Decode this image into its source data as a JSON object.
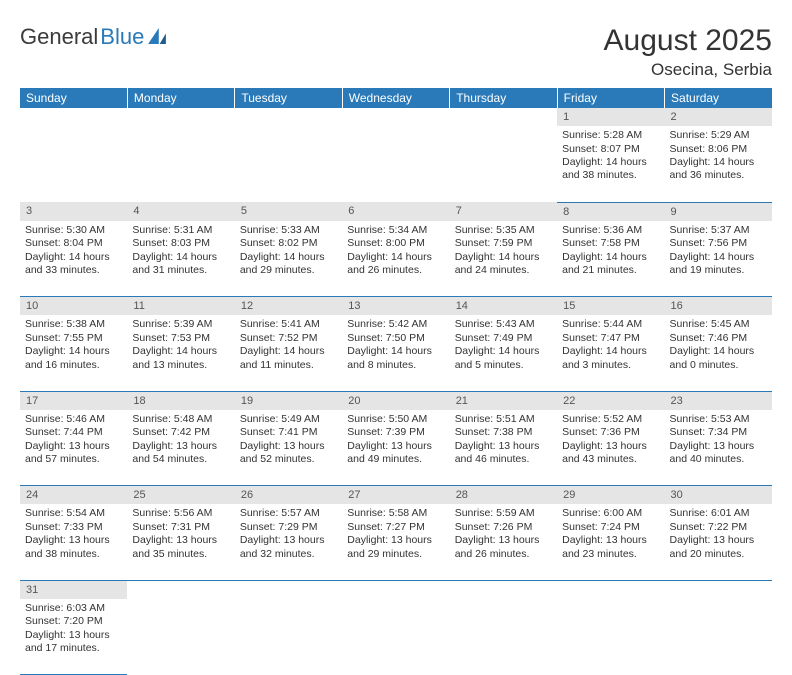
{
  "logo": {
    "word1": "General",
    "word2": "Blue"
  },
  "title": "August 2025",
  "location": "Osecina, Serbia",
  "colors": {
    "header_bg": "#2a7ab9",
    "header_text": "#ffffff",
    "daynum_bg": "#e5e5e5",
    "border": "#2a7ab9",
    "logo_dark": "#3b3b3b",
    "logo_blue": "#2a7ab9"
  },
  "day_headers": [
    "Sunday",
    "Monday",
    "Tuesday",
    "Wednesday",
    "Thursday",
    "Friday",
    "Saturday"
  ],
  "weeks": [
    {
      "nums": [
        "",
        "",
        "",
        "",
        "",
        "1",
        "2"
      ],
      "cells": [
        null,
        null,
        null,
        null,
        null,
        {
          "sr": "Sunrise: 5:28 AM",
          "ss": "Sunset: 8:07 PM",
          "dl": "Daylight: 14 hours and 38 minutes."
        },
        {
          "sr": "Sunrise: 5:29 AM",
          "ss": "Sunset: 8:06 PM",
          "dl": "Daylight: 14 hours and 36 minutes."
        }
      ]
    },
    {
      "nums": [
        "3",
        "4",
        "5",
        "6",
        "7",
        "8",
        "9"
      ],
      "cells": [
        {
          "sr": "Sunrise: 5:30 AM",
          "ss": "Sunset: 8:04 PM",
          "dl": "Daylight: 14 hours and 33 minutes."
        },
        {
          "sr": "Sunrise: 5:31 AM",
          "ss": "Sunset: 8:03 PM",
          "dl": "Daylight: 14 hours and 31 minutes."
        },
        {
          "sr": "Sunrise: 5:33 AM",
          "ss": "Sunset: 8:02 PM",
          "dl": "Daylight: 14 hours and 29 minutes."
        },
        {
          "sr": "Sunrise: 5:34 AM",
          "ss": "Sunset: 8:00 PM",
          "dl": "Daylight: 14 hours and 26 minutes."
        },
        {
          "sr": "Sunrise: 5:35 AM",
          "ss": "Sunset: 7:59 PM",
          "dl": "Daylight: 14 hours and 24 minutes."
        },
        {
          "sr": "Sunrise: 5:36 AM",
          "ss": "Sunset: 7:58 PM",
          "dl": "Daylight: 14 hours and 21 minutes."
        },
        {
          "sr": "Sunrise: 5:37 AM",
          "ss": "Sunset: 7:56 PM",
          "dl": "Daylight: 14 hours and 19 minutes."
        }
      ]
    },
    {
      "nums": [
        "10",
        "11",
        "12",
        "13",
        "14",
        "15",
        "16"
      ],
      "cells": [
        {
          "sr": "Sunrise: 5:38 AM",
          "ss": "Sunset: 7:55 PM",
          "dl": "Daylight: 14 hours and 16 minutes."
        },
        {
          "sr": "Sunrise: 5:39 AM",
          "ss": "Sunset: 7:53 PM",
          "dl": "Daylight: 14 hours and 13 minutes."
        },
        {
          "sr": "Sunrise: 5:41 AM",
          "ss": "Sunset: 7:52 PM",
          "dl": "Daylight: 14 hours and 11 minutes."
        },
        {
          "sr": "Sunrise: 5:42 AM",
          "ss": "Sunset: 7:50 PM",
          "dl": "Daylight: 14 hours and 8 minutes."
        },
        {
          "sr": "Sunrise: 5:43 AM",
          "ss": "Sunset: 7:49 PM",
          "dl": "Daylight: 14 hours and 5 minutes."
        },
        {
          "sr": "Sunrise: 5:44 AM",
          "ss": "Sunset: 7:47 PM",
          "dl": "Daylight: 14 hours and 3 minutes."
        },
        {
          "sr": "Sunrise: 5:45 AM",
          "ss": "Sunset: 7:46 PM",
          "dl": "Daylight: 14 hours and 0 minutes."
        }
      ]
    },
    {
      "nums": [
        "17",
        "18",
        "19",
        "20",
        "21",
        "22",
        "23"
      ],
      "cells": [
        {
          "sr": "Sunrise: 5:46 AM",
          "ss": "Sunset: 7:44 PM",
          "dl": "Daylight: 13 hours and 57 minutes."
        },
        {
          "sr": "Sunrise: 5:48 AM",
          "ss": "Sunset: 7:42 PM",
          "dl": "Daylight: 13 hours and 54 minutes."
        },
        {
          "sr": "Sunrise: 5:49 AM",
          "ss": "Sunset: 7:41 PM",
          "dl": "Daylight: 13 hours and 52 minutes."
        },
        {
          "sr": "Sunrise: 5:50 AM",
          "ss": "Sunset: 7:39 PM",
          "dl": "Daylight: 13 hours and 49 minutes."
        },
        {
          "sr": "Sunrise: 5:51 AM",
          "ss": "Sunset: 7:38 PM",
          "dl": "Daylight: 13 hours and 46 minutes."
        },
        {
          "sr": "Sunrise: 5:52 AM",
          "ss": "Sunset: 7:36 PM",
          "dl": "Daylight: 13 hours and 43 minutes."
        },
        {
          "sr": "Sunrise: 5:53 AM",
          "ss": "Sunset: 7:34 PM",
          "dl": "Daylight: 13 hours and 40 minutes."
        }
      ]
    },
    {
      "nums": [
        "24",
        "25",
        "26",
        "27",
        "28",
        "29",
        "30"
      ],
      "cells": [
        {
          "sr": "Sunrise: 5:54 AM",
          "ss": "Sunset: 7:33 PM",
          "dl": "Daylight: 13 hours and 38 minutes."
        },
        {
          "sr": "Sunrise: 5:56 AM",
          "ss": "Sunset: 7:31 PM",
          "dl": "Daylight: 13 hours and 35 minutes."
        },
        {
          "sr": "Sunrise: 5:57 AM",
          "ss": "Sunset: 7:29 PM",
          "dl": "Daylight: 13 hours and 32 minutes."
        },
        {
          "sr": "Sunrise: 5:58 AM",
          "ss": "Sunset: 7:27 PM",
          "dl": "Daylight: 13 hours and 29 minutes."
        },
        {
          "sr": "Sunrise: 5:59 AM",
          "ss": "Sunset: 7:26 PM",
          "dl": "Daylight: 13 hours and 26 minutes."
        },
        {
          "sr": "Sunrise: 6:00 AM",
          "ss": "Sunset: 7:24 PM",
          "dl": "Daylight: 13 hours and 23 minutes."
        },
        {
          "sr": "Sunrise: 6:01 AM",
          "ss": "Sunset: 7:22 PM",
          "dl": "Daylight: 13 hours and 20 minutes."
        }
      ]
    },
    {
      "nums": [
        "31",
        "",
        "",
        "",
        "",
        "",
        ""
      ],
      "cells": [
        {
          "sr": "Sunrise: 6:03 AM",
          "ss": "Sunset: 7:20 PM",
          "dl": "Daylight: 13 hours and 17 minutes."
        },
        null,
        null,
        null,
        null,
        null,
        null
      ]
    }
  ]
}
